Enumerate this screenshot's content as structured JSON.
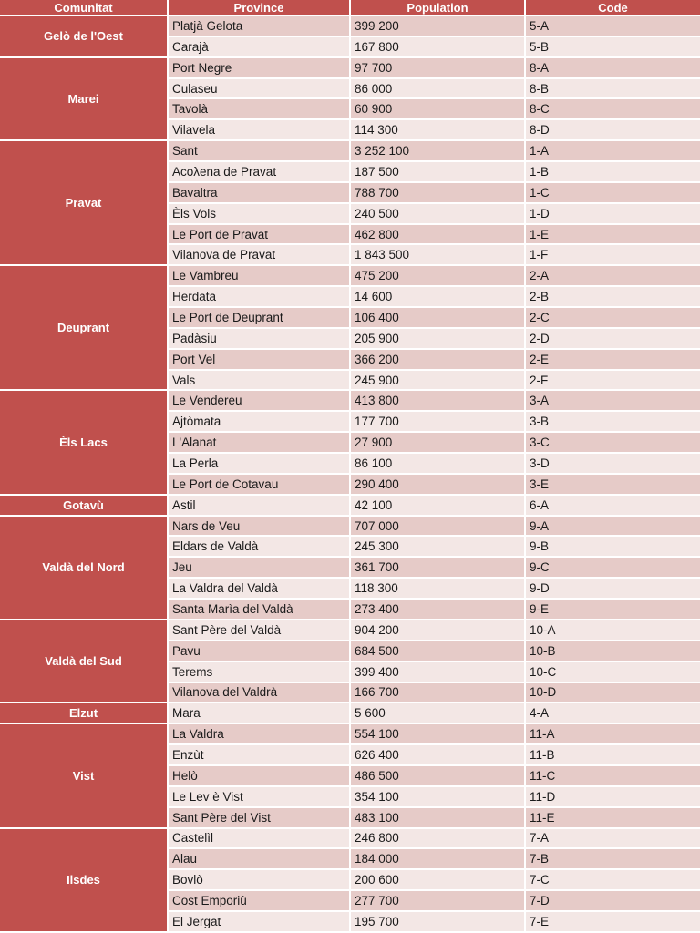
{
  "colors": {
    "header_bg": "#c0504d",
    "header_text": "#ffffff",
    "band_dark": "#e6cbc8",
    "band_light": "#f3e7e5",
    "grid": "#ffffff",
    "body_text": "#1a1a1a"
  },
  "chart_data": {
    "type": "table",
    "columns": [
      "Comunitat",
      "Province",
      "Population",
      "Code"
    ],
    "groups": [
      {
        "comunitat": "Gelò de l'Oest",
        "rows": [
          [
            "Platjà Gelota",
            "399 200",
            "5-A"
          ],
          [
            "Carajà",
            "167 800",
            "5-B"
          ]
        ]
      },
      {
        "comunitat": "Marei",
        "rows": [
          [
            "Port Negre",
            "97 700",
            "8-A"
          ],
          [
            "Culaseu",
            "86 000",
            "8-B"
          ],
          [
            "Tavolà",
            "60 900",
            "8-C"
          ],
          [
            "Vilavela",
            "114 300",
            "8-D"
          ]
        ]
      },
      {
        "comunitat": "Pravat",
        "rows": [
          [
            "Sant",
            "3 252 100",
            "1-A"
          ],
          [
            "Acoλena de Pravat",
            "187 500",
            "1-B"
          ],
          [
            "Bavaltra",
            "788 700",
            "1-C"
          ],
          [
            "Èls Vols",
            "240 500",
            "1-D"
          ],
          [
            "Le Port de Pravat",
            "462 800",
            "1-E"
          ],
          [
            "Vilanova de Pravat",
            "1 843 500",
            "1-F"
          ]
        ]
      },
      {
        "comunitat": "Deuprant",
        "rows": [
          [
            "Le Vambreu",
            "475 200",
            "2-A"
          ],
          [
            "Herdata",
            "14 600",
            "2-B"
          ],
          [
            "Le Port de Deuprant",
            "106 400",
            "2-C"
          ],
          [
            "Padàsiu",
            "205 900",
            "2-D"
          ],
          [
            "Port Vel",
            "366 200",
            "2-E"
          ],
          [
            "Vals",
            "245 900",
            "2-F"
          ]
        ]
      },
      {
        "comunitat": "Èls Lacs",
        "rows": [
          [
            "Le Vendereu",
            "413 800",
            "3-A"
          ],
          [
            "Ajtòmata",
            "177 700",
            "3-B"
          ],
          [
            "L'Alanat",
            "27 900",
            "3-C"
          ],
          [
            "La Perla",
            "86 100",
            "3-D"
          ],
          [
            "Le Port de Cotavau",
            "290 400",
            "3-E"
          ]
        ]
      },
      {
        "comunitat": "Gotavù",
        "rows": [
          [
            "Astil",
            "42 100",
            "6-A"
          ]
        ]
      },
      {
        "comunitat": "Valdà del Nord",
        "rows": [
          [
            "Nars de Veu",
            "707 000",
            "9-A"
          ],
          [
            "Eldars de Valdà",
            "245 300",
            "9-B"
          ],
          [
            "Jeu",
            "361 700",
            "9-C"
          ],
          [
            "La Valdra del Valdà",
            "118 300",
            "9-D"
          ],
          [
            "Santa Marìa del Valdà",
            "273 400",
            "9-E"
          ]
        ]
      },
      {
        "comunitat": "Valdà del Sud",
        "rows": [
          [
            "Sant Père del Valdà",
            "904 200",
            "10-A"
          ],
          [
            "Pavu",
            "684 500",
            "10-B"
          ],
          [
            "Terems",
            "399 400",
            "10-C"
          ],
          [
            "Vilanova del Valdrà",
            "166 700",
            "10-D"
          ]
        ]
      },
      {
        "comunitat": "Elzut",
        "rows": [
          [
            "Mara",
            "5 600",
            "4-A"
          ]
        ]
      },
      {
        "comunitat": "Vist",
        "rows": [
          [
            "La Valdra",
            "554 100",
            "11-A"
          ],
          [
            "Enzùt",
            "626 400",
            "11-B"
          ],
          [
            "Helò",
            "486 500",
            "11-C"
          ],
          [
            "Le Lev è Vist",
            "354 100",
            "11-D"
          ],
          [
            "Sant Père del Vist",
            "483 100",
            "11-E"
          ]
        ]
      },
      {
        "comunitat": "Ilsdes",
        "rows": [
          [
            "Castelìl",
            "246 800",
            "7-A"
          ],
          [
            "Alau",
            "184 000",
            "7-B"
          ],
          [
            "Bovlò",
            "200 600",
            "7-C"
          ],
          [
            "Cost Emporiù",
            "277 700",
            "7-D"
          ],
          [
            "El Jergat",
            "195 700",
            "7-E"
          ]
        ]
      }
    ]
  }
}
